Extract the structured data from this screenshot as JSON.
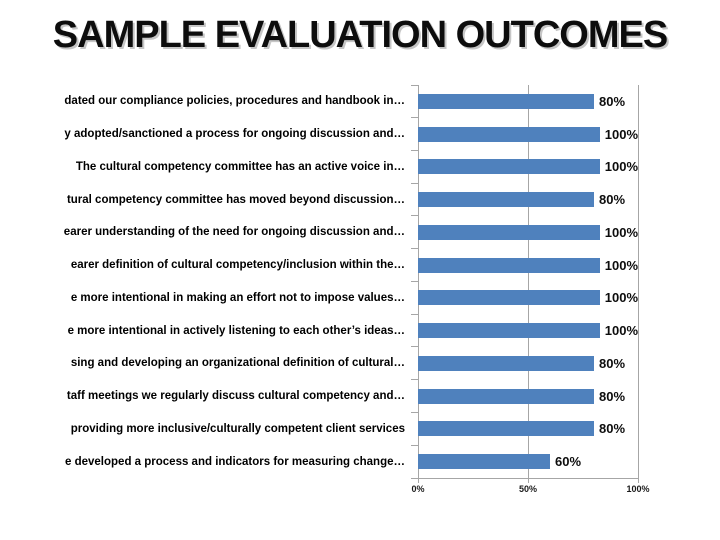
{
  "slide": {
    "title": "SAMPLE EVALUATION OUTCOMES"
  },
  "chart_data": {
    "type": "bar",
    "orientation": "horizontal",
    "title": "SAMPLE EVALUATION OUTCOMES",
    "categories": [
      "dated our compliance policies, procedures and handbook in…",
      "y adopted/sanctioned a process for ongoing discussion and…",
      "The cultural competency committee has an active voice in…",
      "tural competency committee has moved beyond discussion…",
      "earer understanding of the need for ongoing discussion and…",
      "earer definition of cultural competency/inclusion within the…",
      "e more intentional in making an effort not to impose values…",
      "e more intentional in actively listening to each other’s ideas…",
      "sing and developing an organizational definition of cultural…",
      "taff meetings we regularly discuss cultural competency and…",
      "providing more inclusive/culturally competent client services",
      "e developed a process and indicators for measuring change…"
    ],
    "values": [
      80,
      100,
      100,
      80,
      100,
      100,
      100,
      100,
      80,
      80,
      80,
      60
    ],
    "data_labels": [
      "80%",
      "100%",
      "100%",
      "80%",
      "100%",
      "100%",
      "100%",
      "100%",
      "80%",
      "80%",
      "80%",
      "60%"
    ],
    "x_axis_ticks": [
      "0%",
      "50%",
      "100%"
    ],
    "x_axis_tick_values": [
      0,
      50,
      100
    ],
    "xlim": [
      0,
      100
    ],
    "grid": "vertical",
    "legend": "none",
    "colors": {
      "bar": "#4F81BD",
      "gridline": "#a6a6a6",
      "axis": "#a6a6a6",
      "label": "#0d0d0d"
    }
  }
}
